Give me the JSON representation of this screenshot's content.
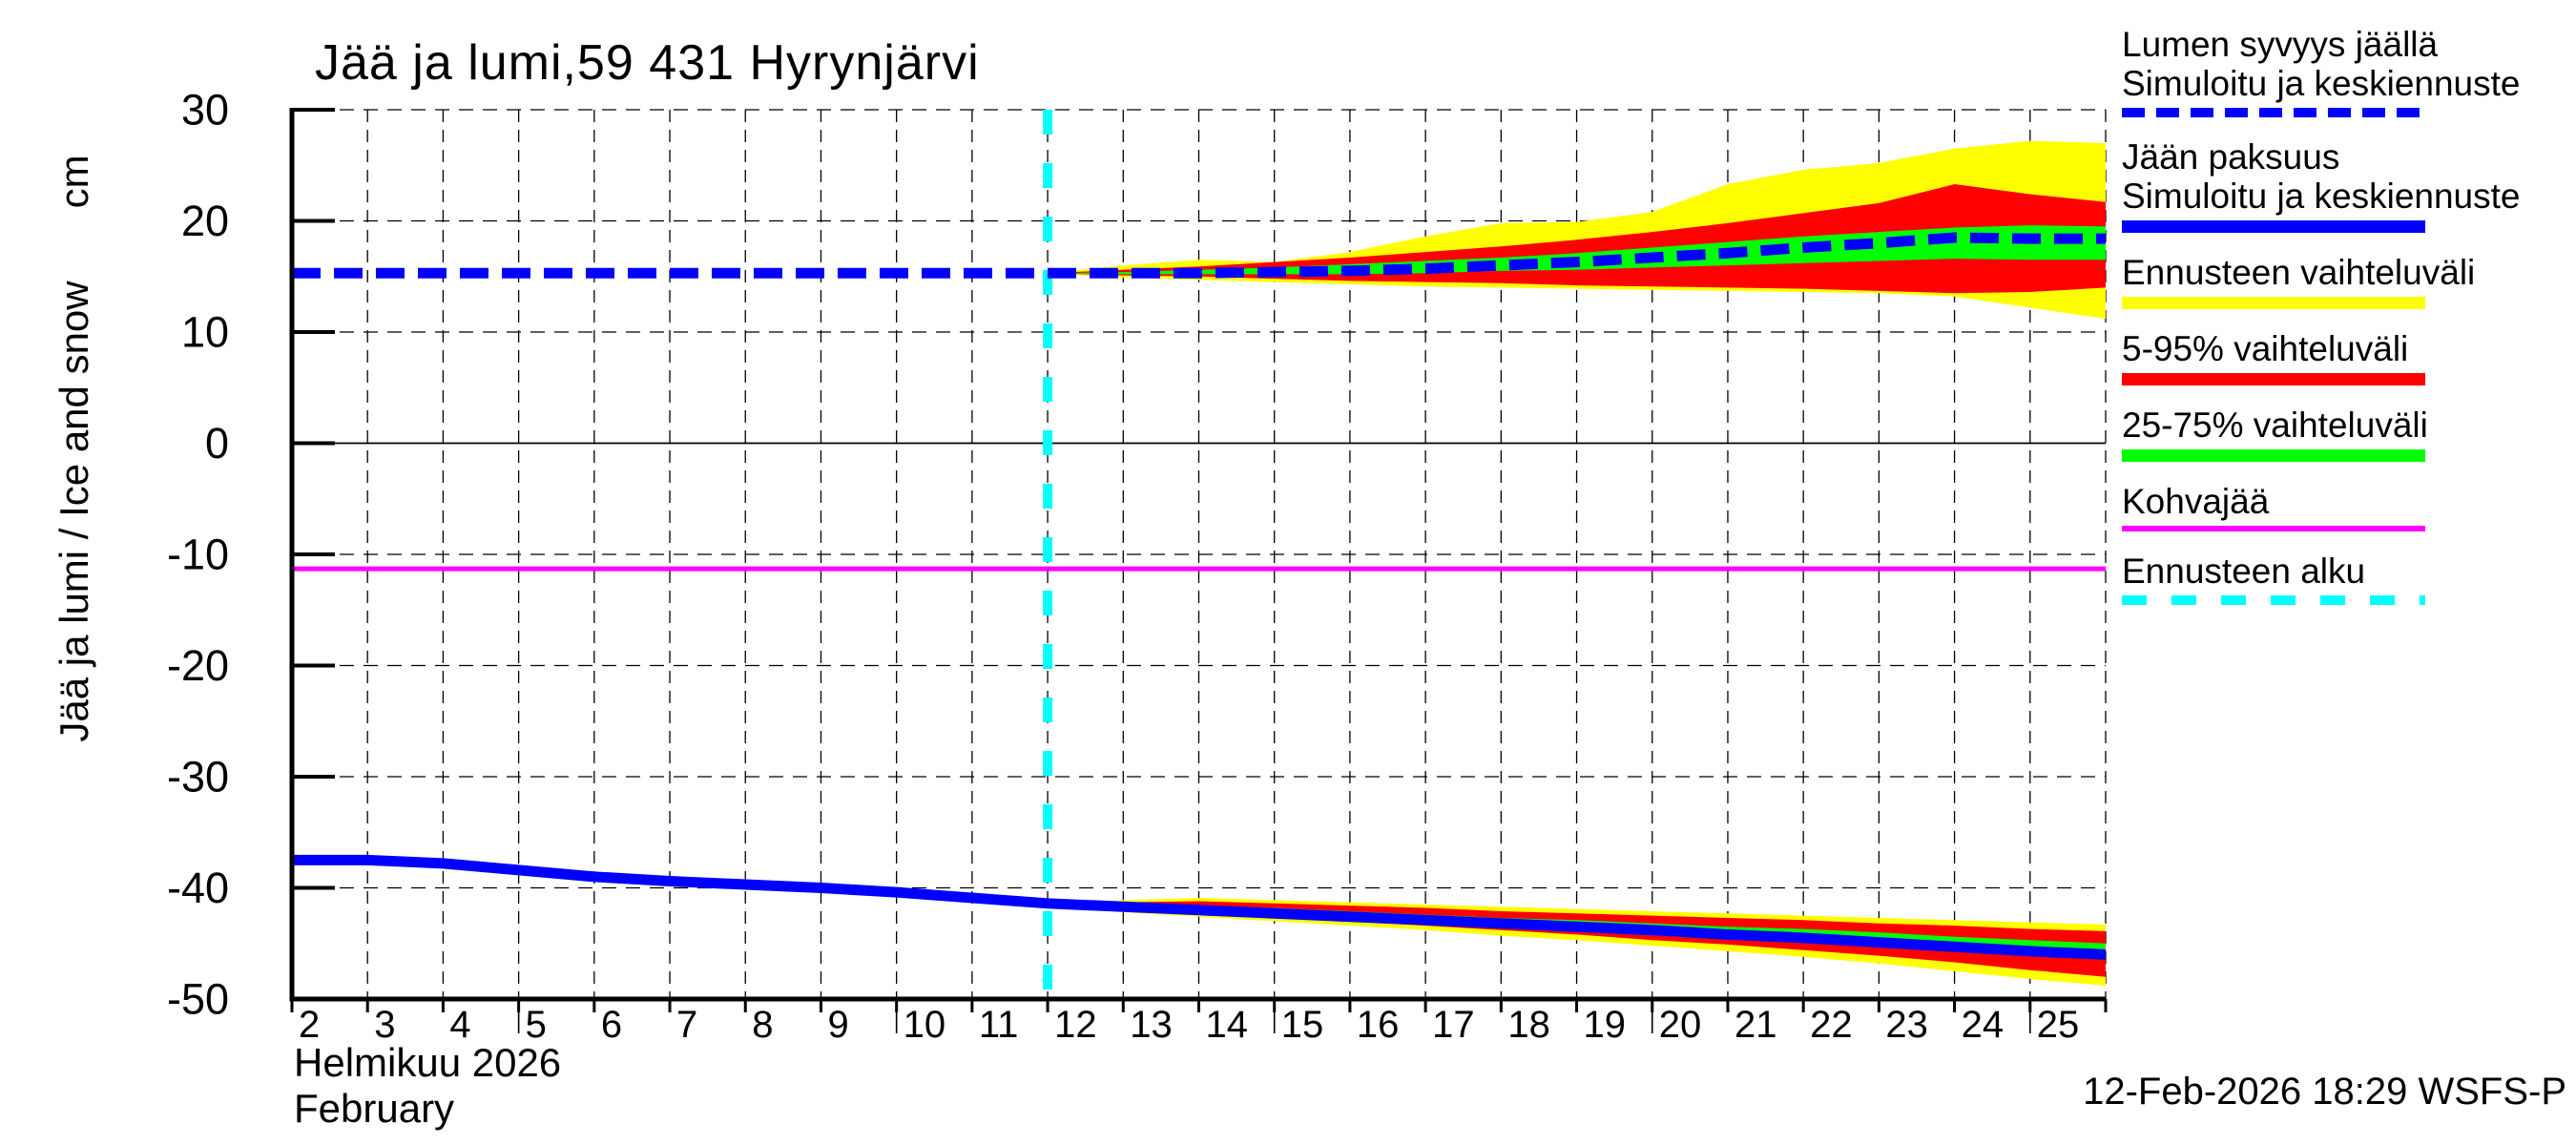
{
  "chart_data": {
    "type": "area",
    "title": "Jää ja lumi,59 431 Hyrynjärvi",
    "ylabel": "Jää ja lumi / Ice and snow",
    "ylabel_unit": "cm",
    "xlabel_fi": "Helmikuu 2026",
    "xlabel_en": "February",
    "timestamp": "12-Feb-2026 18:29 WSFS-P",
    "ylim": [
      -50,
      30
    ],
    "yticks": [
      30,
      20,
      10,
      0,
      -10,
      -20,
      -30,
      -40,
      -50
    ],
    "day_min": 2,
    "day_max": 26,
    "day_labels": [
      2,
      3,
      4,
      5,
      6,
      7,
      8,
      9,
      10,
      11,
      12,
      13,
      14,
      15,
      16,
      17,
      18,
      19,
      20,
      21,
      22,
      23,
      24,
      25
    ],
    "major_day_ticks": [
      5,
      10,
      15,
      20,
      25
    ],
    "forecast_start_day": 12,
    "kohvajaa_level_cm": -11.3,
    "grid": true,
    "legend_position": "right",
    "colors": {
      "blue": "#0000ff",
      "cyan": "#00ffff",
      "magenta": "#ff00ff",
      "yellow": "#ffff00",
      "red": "#ff0000",
      "green": "#00ff00",
      "grid": "#000000",
      "axis": "#000000"
    },
    "layout": {
      "x0": 306,
      "x1": 2207,
      "y_top": 115,
      "y_bottom": 1047
    },
    "days": [
      2,
      3,
      4,
      5,
      6,
      7,
      8,
      9,
      10,
      11,
      12,
      13,
      14,
      15,
      16,
      17,
      18,
      19,
      20,
      21,
      22,
      23,
      24,
      25,
      26
    ],
    "forecast_days": [
      12,
      13,
      14,
      15,
      16,
      17,
      18,
      19,
      20,
      21,
      22,
      23,
      24,
      25,
      26
    ],
    "series": {
      "snow": {
        "name_fi": "Lumen syvyys jäällä",
        "center": [
          15.3,
          15.3,
          15.3,
          15.3,
          15.3,
          15.3,
          15.3,
          15.3,
          15.3,
          15.3,
          15.3,
          15.3,
          15.3,
          15.4,
          15.5,
          15.7,
          16.0,
          16.3,
          16.7,
          17.1,
          17.6,
          18.0,
          18.5,
          18.4,
          18.4
        ],
        "band_minmax": {
          "lo": [
            15.3,
            14.9,
            14.7,
            14.5,
            14.3,
            14.1,
            14.0,
            13.9,
            13.8,
            13.7,
            13.6,
            13.5,
            13.2,
            12.2,
            11.2
          ],
          "hi": [
            15.3,
            16.0,
            16.5,
            16.3,
            17.2,
            18.6,
            19.8,
            19.9,
            20.8,
            23.3,
            24.6,
            25.2,
            26.5,
            27.2,
            27.0
          ]
        },
        "band_5_95": {
          "lo": [
            15.3,
            15.1,
            15.0,
            14.8,
            14.6,
            14.5,
            14.4,
            14.2,
            14.1,
            14.0,
            13.9,
            13.7,
            13.5,
            13.6,
            14.0
          ],
          "hi": [
            15.3,
            15.6,
            15.9,
            16.3,
            16.7,
            17.2,
            17.7,
            18.3,
            19.0,
            19.8,
            20.7,
            21.6,
            23.3,
            22.4,
            21.7
          ]
        },
        "band_25_75": {
          "lo": [
            15.3,
            15.2,
            15.2,
            15.2,
            15.2,
            15.3,
            15.5,
            15.6,
            15.8,
            16.0,
            16.2,
            16.4,
            16.6,
            16.5,
            16.5
          ],
          "hi": [
            15.3,
            15.4,
            15.6,
            15.8,
            16.1,
            16.4,
            16.7,
            17.1,
            17.6,
            18.1,
            18.6,
            19.0,
            19.4,
            19.6,
            19.5
          ]
        }
      },
      "ice": {
        "name_fi": "Jään paksuus",
        "center": [
          -37.5,
          -37.5,
          -37.8,
          -38.4,
          -39.0,
          -39.4,
          -39.7,
          -40.0,
          -40.4,
          -40.9,
          -41.4,
          -41.7,
          -42.0,
          -42.3,
          -42.6,
          -42.9,
          -43.2,
          -43.5,
          -43.8,
          -44.2,
          -44.5,
          -44.9,
          -45.3,
          -45.7,
          -46.0
        ],
        "band_minmax": {
          "lo": [
            -41.4,
            -42.2,
            -42.6,
            -43.0,
            -43.4,
            -43.8,
            -44.3,
            -44.7,
            -45.2,
            -45.7,
            -46.2,
            -46.8,
            -47.5,
            -48.2,
            -48.8
          ],
          "hi": [
            -41.4,
            -41.1,
            -40.9,
            -41.1,
            -41.3,
            -41.5,
            -41.7,
            -41.9,
            -42.1,
            -42.3,
            -42.5,
            -42.7,
            -42.9,
            -43.1,
            -43.3
          ]
        },
        "band_5_95": {
          "lo": [
            -41.4,
            -42.0,
            -42.3,
            -42.6,
            -43.0,
            -43.4,
            -43.8,
            -44.2,
            -44.7,
            -45.1,
            -45.6,
            -46.1,
            -46.7,
            -47.4,
            -48.0
          ],
          "hi": [
            -41.4,
            -41.3,
            -41.2,
            -41.4,
            -41.6,
            -41.8,
            -42.1,
            -42.3,
            -42.5,
            -42.7,
            -42.9,
            -43.2,
            -43.4,
            -43.7,
            -43.9
          ]
        },
        "band_25_75": {
          "lo": [
            -41.4,
            -41.7,
            -42.0,
            -42.3,
            -42.7,
            -43.0,
            -43.4,
            -43.7,
            -44.1,
            -44.4,
            -44.8,
            -45.2,
            -45.6,
            -46.0,
            -46.3
          ],
          "hi": [
            -41.4,
            -41.5,
            -41.6,
            -41.8,
            -42.1,
            -42.4,
            -42.7,
            -42.9,
            -43.2,
            -43.5,
            -43.7,
            -44.0,
            -44.4,
            -44.7,
            -45.0
          ]
        }
      }
    },
    "legend": [
      {
        "lines": [
          "Lumen syvyys jäällä",
          "Simuloitu ja keskiennuste"
        ],
        "color": "#0000ff",
        "style": "dashed",
        "height": 10,
        "dash": [
          24,
          12
        ]
      },
      {
        "lines": [
          "Jään paksuus",
          "Simuloitu ja keskiennuste"
        ],
        "color": "#0000ff",
        "style": "solid",
        "height": 13
      },
      {
        "lines": [
          "Ennusteen vaihteluväli"
        ],
        "color": "#ffff00",
        "style": "solid",
        "height": 13
      },
      {
        "lines": [
          "5-95% vaihteluväli"
        ],
        "color": "#ff0000",
        "style": "solid",
        "height": 13
      },
      {
        "lines": [
          "25-75% vaihteluväli"
        ],
        "color": "#00ff00",
        "style": "solid",
        "height": 13
      },
      {
        "lines": [
          "Kohvajää"
        ],
        "color": "#ff00ff",
        "style": "solid",
        "height": 6
      },
      {
        "lines": [
          "Ennusteen alku"
        ],
        "color": "#00ffff",
        "style": "dashed",
        "height": 10,
        "dash": [
          26,
          26
        ]
      }
    ]
  }
}
